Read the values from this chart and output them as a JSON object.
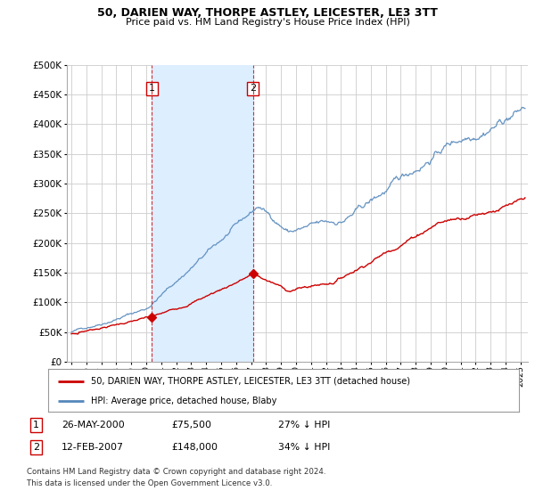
{
  "title": "50, DARIEN WAY, THORPE ASTLEY, LEICESTER, LE3 3TT",
  "subtitle": "Price paid vs. HM Land Registry's House Price Index (HPI)",
  "legend_line1": "50, DARIEN WAY, THORPE ASTLEY, LEICESTER, LE3 3TT (detached house)",
  "legend_line2": "HPI: Average price, detached house, Blaby",
  "label1_date": "26-MAY-2000",
  "label1_price": "£75,500",
  "label1_hpi": "27% ↓ HPI",
  "label2_date": "12-FEB-2007",
  "label2_price": "£148,000",
  "label2_hpi": "34% ↓ HPI",
  "footnote1": "Contains HM Land Registry data © Crown copyright and database right 2024.",
  "footnote2": "This data is licensed under the Open Government Licence v3.0.",
  "red_color": "#cc0000",
  "blue_color": "#5588bb",
  "shade_color": "#ddeeff",
  "dashed_color": "#cc0000",
  "background": "#ffffff",
  "grid_color": "#cccccc",
  "ylim": [
    0,
    500000
  ],
  "yticks": [
    0,
    50000,
    100000,
    150000,
    200000,
    250000,
    300000,
    350000,
    400000,
    450000,
    500000
  ],
  "xlim_start": 1994.7,
  "xlim_end": 2025.5,
  "marker1_x": 2000.38,
  "marker1_y": 75500,
  "marker2_x": 2007.12,
  "marker2_y": 148000,
  "vline1_x": 2000.38,
  "vline2_x": 2007.12,
  "hpi_seed": 10,
  "prop_seed": 7
}
